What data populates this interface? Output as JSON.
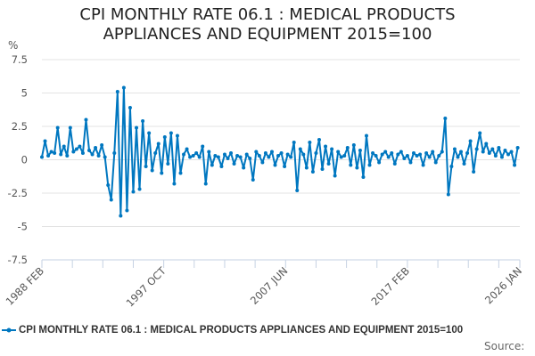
{
  "chart_data": {
    "type": "line",
    "title_lines": [
      "CPI MONTHLY RATE 06.1 : MEDICAL PRODUCTS",
      "APPLIANCES AND EQUIPMENT 2015=100"
    ],
    "ylabel": "%",
    "ylim": [
      -7.5,
      7.5
    ],
    "yticks": [
      "7.5",
      "5",
      "2.5",
      "0",
      "-2.5",
      "-5",
      "-7.5"
    ],
    "ytick_values": [
      7.5,
      5,
      2.5,
      0,
      -2.5,
      -5,
      -7.5
    ],
    "xlim": [
      1988.08,
      2026.0
    ],
    "xtick_labels": [
      "1988 FEB",
      "1997 OCT",
      "2007 JUN",
      "2017 FEB",
      "2026 JAN"
    ],
    "xtick_label_values": [
      1988.08,
      1997.75,
      2007.42,
      2017.08,
      2026.0
    ],
    "grid": true,
    "x_start": 1988.08,
    "x_step": 0.25,
    "series": [
      {
        "name": "CPI MONTHLY RATE 06.1 : MEDICAL PRODUCTS APPLIANCES AND EQUIPMENT 2015=100",
        "color": "#0077c0",
        "values": [
          0.2,
          1.4,
          0.3,
          0.6,
          0.5,
          2.4,
          0.4,
          1.0,
          0.3,
          2.4,
          0.6,
          0.8,
          1.0,
          0.5,
          3.0,
          0.7,
          0.4,
          0.9,
          0.3,
          1.1,
          0.2,
          -1.9,
          -3.0,
          0.5,
          5.1,
          -4.2,
          5.4,
          -3.8,
          3.9,
          -2.4,
          2.4,
          -2.2,
          2.9,
          -0.5,
          2.0,
          -0.8,
          0.5,
          1.2,
          -1.0,
          1.7,
          -0.3,
          2.0,
          -1.8,
          1.8,
          -1.0,
          0.4,
          0.8,
          0.2,
          0.3,
          0.5,
          0.2,
          1.0,
          -1.8,
          0.6,
          -0.4,
          0.3,
          0.2,
          -0.5,
          0.4,
          0.1,
          0.5,
          -0.3,
          0.3,
          0.2,
          -0.6,
          0.4,
          0.1,
          -1.5,
          0.6,
          0.3,
          -0.2,
          0.5,
          0.2,
          0.6,
          -0.4,
          0.3,
          0.5,
          -0.5,
          0.4,
          0.2,
          1.3,
          -2.3,
          0.8,
          0.4,
          -0.6,
          1.3,
          -0.9,
          0.5,
          1.5,
          -0.7,
          1.0,
          -0.3,
          0.8,
          -1.2,
          0.6,
          0.2,
          0.3,
          0.9,
          -0.4,
          1.1,
          -0.6,
          0.7,
          -1.3,
          1.8,
          -0.4,
          0.5,
          0.3,
          -0.2,
          0.4,
          0.6,
          0.2,
          0.5,
          -0.3,
          0.4,
          0.6,
          0.1,
          0.3,
          -0.2,
          0.5,
          0.3,
          0.4,
          -0.4,
          0.5,
          0.2,
          0.6,
          -0.2,
          0.3,
          0.6,
          3.1,
          -2.6,
          -0.5,
          0.8,
          0.2,
          0.6,
          -0.3,
          0.5,
          1.4,
          -0.9,
          0.8,
          2.0,
          0.6,
          1.2,
          0.5,
          0.8,
          0.3,
          0.9,
          0.2,
          0.7,
          0.4,
          0.6,
          -0.4,
          0.9
        ]
      }
    ],
    "legend_position": "bottom",
    "source_label": "Source:"
  }
}
